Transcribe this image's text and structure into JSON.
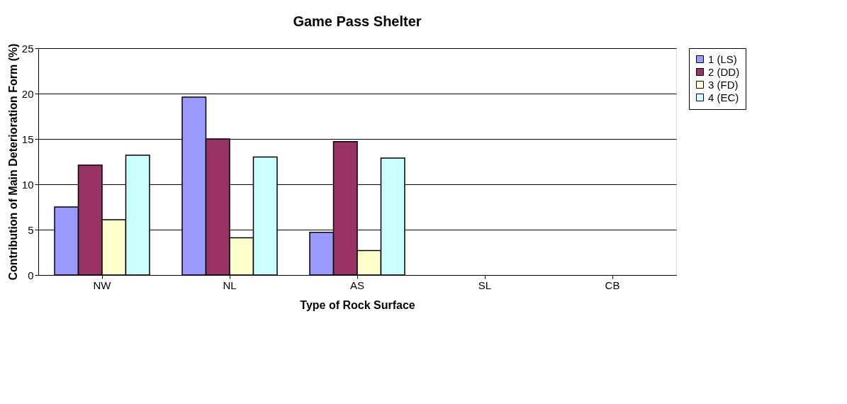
{
  "chart_data": {
    "type": "bar",
    "title": "Game Pass Shelter",
    "xlabel": "Type of Rock Surface",
    "ylabel": "Contribution of Main Deterioration Form (%)",
    "categories": [
      "NW",
      "NL",
      "AS",
      "SL",
      "CB"
    ],
    "series": [
      {
        "name": "1 (LS)",
        "color": "#9999ff",
        "values": [
          7.5,
          19.6,
          4.7,
          null,
          null
        ]
      },
      {
        "name": "2 (DD)",
        "color": "#993366",
        "values": [
          12.1,
          15.0,
          14.7,
          null,
          null
        ]
      },
      {
        "name": "3 (FD)",
        "color": "#ffffcc",
        "values": [
          6.1,
          4.1,
          2.7,
          null,
          null
        ]
      },
      {
        "name": "4 (EC)",
        "color": "#ccffff",
        "values": [
          13.2,
          13.0,
          12.9,
          null,
          null
        ]
      }
    ],
    "ylim": [
      0,
      25
    ],
    "yticks": [
      0,
      5,
      10,
      15,
      20,
      25
    ],
    "grid": "y",
    "legend": "right"
  }
}
